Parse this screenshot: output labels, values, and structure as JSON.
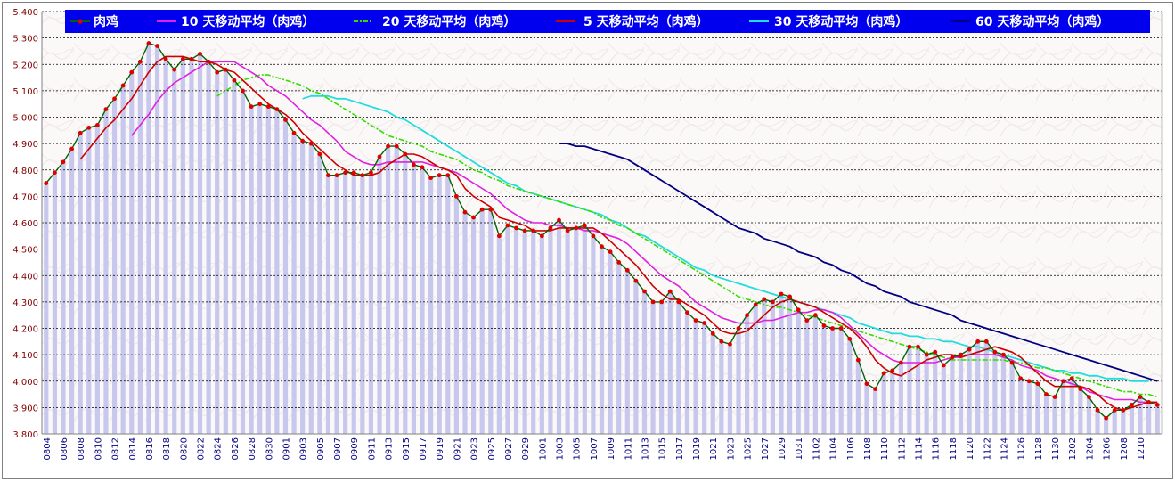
{
  "chart_data": {
    "type": "line",
    "title": "",
    "xlabel": "",
    "ylabel": "",
    "ylim": [
      3.8,
      5.4
    ],
    "yticks": [
      "3.800",
      "3.900",
      "4.000",
      "4.100",
      "4.200",
      "4.300",
      "4.400",
      "4.500",
      "4.600",
      "4.700",
      "4.800",
      "4.900",
      "5.000",
      "5.100",
      "5.200",
      "5.300",
      "5.400"
    ],
    "xticks": [
      "0804",
      "0806",
      "0808",
      "0810",
      "0812",
      "0814",
      "0816",
      "0818",
      "0820",
      "0822",
      "0824",
      "0826",
      "0828",
      "0830",
      "0901",
      "0903",
      "0905",
      "0907",
      "0909",
      "0911",
      "0913",
      "0915",
      "0917",
      "0919",
      "0921",
      "0923",
      "0925",
      "0927",
      "0929",
      "1001",
      "1003",
      "1005",
      "1007",
      "1009",
      "1011",
      "1013",
      "1015",
      "1017",
      "1019",
      "1021",
      "1023",
      "1025",
      "1027",
      "1029",
      "1031",
      "1102",
      "1104",
      "1106",
      "1108",
      "1110",
      "1112",
      "1114",
      "1116",
      "1118",
      "1120",
      "1122",
      "1124",
      "1126",
      "1128",
      "1130",
      "1202",
      "1204",
      "1206",
      "1208",
      "1210"
    ],
    "legend_position": "top",
    "colors": {
      "price": "#006400",
      "price_marker": "#e00000",
      "ma10": "#e020e0",
      "ma20": "#33dd00",
      "ma5": "#cc0000",
      "ma30": "#22dddd",
      "ma60": "#000080",
      "legend_bg": "#0000ee",
      "bars": "#c8c8ee",
      "axis_text": "#800000"
    },
    "series": [
      {
        "key": "price",
        "name": "肉鸡",
        "values": [
          4.75,
          4.79,
          4.83,
          4.88,
          4.94,
          4.96,
          4.97,
          5.03,
          5.07,
          5.12,
          5.17,
          5.21,
          5.28,
          5.27,
          5.22,
          5.18,
          5.22,
          5.22,
          5.24,
          5.21,
          5.17,
          5.18,
          5.14,
          5.1,
          5.04,
          5.05,
          5.04,
          5.03,
          4.99,
          4.94,
          4.91,
          4.9,
          4.86,
          4.78,
          4.78,
          4.79,
          4.79,
          4.78,
          4.79,
          4.85,
          4.89,
          4.89,
          4.86,
          4.82,
          4.81,
          4.77,
          4.78,
          4.78,
          4.7,
          4.64,
          4.62,
          4.65,
          4.65,
          4.55,
          4.59,
          4.58,
          4.57,
          4.57,
          4.55,
          4.58,
          4.61,
          4.57,
          4.58,
          4.59,
          4.55,
          4.51,
          4.49,
          4.45,
          4.42,
          4.38,
          4.34,
          4.3,
          4.3,
          4.34,
          4.3,
          4.26,
          4.23,
          4.22,
          4.18,
          4.15,
          4.14,
          4.2,
          4.25,
          4.29,
          4.31,
          4.3,
          4.33,
          4.32,
          4.27,
          4.23,
          4.25,
          4.21,
          4.2,
          4.2,
          4.16,
          4.08,
          3.99,
          3.97,
          4.03,
          4.04,
          4.07,
          4.13,
          4.13,
          4.1,
          4.11,
          4.06,
          4.09,
          4.1,
          4.12,
          4.15,
          4.15,
          4.11,
          4.1,
          4.07,
          4.01,
          4.0,
          3.99,
          3.95,
          3.94,
          4.0,
          4.01,
          3.97,
          3.94,
          3.89,
          3.86,
          3.89,
          3.89,
          3.91,
          3.94,
          3.92,
          3.91
        ]
      },
      {
        "key": "ma5",
        "name": "5 天移动平均（肉鸡）",
        "values": [
          null,
          null,
          null,
          null,
          4.84,
          4.88,
          4.92,
          4.96,
          4.99,
          5.03,
          5.07,
          5.12,
          5.17,
          5.21,
          5.23,
          5.23,
          5.23,
          5.22,
          5.21,
          5.21,
          5.2,
          5.18,
          5.17,
          5.14,
          5.11,
          5.08,
          5.05,
          5.03,
          5.01,
          4.98,
          4.94,
          4.91,
          4.88,
          4.85,
          4.82,
          4.8,
          4.78,
          4.78,
          4.78,
          4.79,
          4.82,
          4.84,
          4.86,
          4.86,
          4.85,
          4.83,
          4.81,
          4.8,
          4.78,
          4.73,
          4.7,
          4.68,
          4.66,
          4.62,
          4.61,
          4.6,
          4.59,
          4.57,
          4.57,
          4.57,
          4.58,
          4.58,
          4.58,
          4.58,
          4.58,
          4.56,
          4.53,
          4.5,
          4.47,
          4.44,
          4.4,
          4.36,
          4.33,
          4.31,
          4.31,
          4.29,
          4.27,
          4.25,
          4.22,
          4.19,
          4.18,
          4.18,
          4.19,
          4.22,
          4.25,
          4.28,
          4.3,
          4.31,
          4.3,
          4.29,
          4.28,
          4.26,
          4.24,
          4.22,
          4.2,
          4.17,
          4.13,
          4.08,
          4.05,
          4.03,
          4.02,
          4.04,
          4.06,
          4.08,
          4.09,
          4.1,
          4.1,
          4.09,
          4.1,
          4.11,
          4.12,
          4.13,
          4.12,
          4.11,
          4.09,
          4.06,
          4.03,
          4.0,
          3.98,
          3.98,
          3.98,
          3.98,
          3.97,
          3.95,
          3.92,
          3.9,
          3.89,
          3.9,
          3.91,
          3.92,
          3.92
        ]
      },
      {
        "key": "ma10",
        "name": "10 天移动平均（肉鸡）",
        "values": [
          null,
          null,
          null,
          null,
          null,
          null,
          null,
          null,
          null,
          null,
          4.93,
          4.97,
          5.01,
          5.06,
          5.1,
          5.13,
          5.15,
          5.17,
          5.19,
          5.21,
          5.21,
          5.21,
          5.21,
          5.19,
          5.17,
          5.15,
          5.12,
          5.1,
          5.08,
          5.05,
          5.02,
          4.99,
          4.97,
          4.94,
          4.91,
          4.87,
          4.85,
          4.83,
          4.82,
          4.82,
          4.83,
          4.83,
          4.83,
          4.83,
          4.83,
          4.82,
          4.81,
          4.8,
          4.79,
          4.77,
          4.75,
          4.73,
          4.71,
          4.68,
          4.65,
          4.63,
          4.61,
          4.6,
          4.6,
          4.59,
          4.59,
          4.58,
          4.58,
          4.57,
          4.57,
          4.56,
          4.55,
          4.54,
          4.52,
          4.49,
          4.46,
          4.43,
          4.4,
          4.38,
          4.36,
          4.33,
          4.3,
          4.28,
          4.26,
          4.24,
          4.23,
          4.22,
          4.22,
          4.22,
          4.23,
          4.23,
          4.24,
          4.25,
          4.26,
          4.26,
          4.27,
          4.27,
          4.26,
          4.24,
          4.21,
          4.18,
          4.15,
          4.12,
          4.1,
          4.08,
          4.07,
          4.07,
          4.07,
          4.07,
          4.07,
          4.08,
          4.09,
          4.09,
          4.1,
          4.1,
          4.1,
          4.1,
          4.09,
          4.08,
          4.06,
          4.05,
          4.04,
          4.02,
          4.01,
          4.0,
          3.99,
          3.98,
          3.96,
          3.95,
          3.94,
          3.93,
          3.93,
          3.93,
          3.92,
          3.92,
          3.92
        ]
      },
      {
        "key": "ma20",
        "name": "20 天移动平均（肉鸡）",
        "values": [
          null,
          null,
          null,
          null,
          null,
          null,
          null,
          null,
          null,
          null,
          null,
          null,
          null,
          null,
          null,
          null,
          null,
          null,
          null,
          null,
          5.08,
          5.1,
          5.12,
          5.14,
          5.15,
          5.16,
          5.16,
          5.15,
          5.14,
          5.13,
          5.12,
          5.1,
          5.09,
          5.07,
          5.05,
          5.03,
          5.01,
          4.99,
          4.97,
          4.95,
          4.93,
          4.92,
          4.91,
          4.9,
          4.89,
          4.87,
          4.86,
          4.85,
          4.84,
          4.82,
          4.8,
          4.79,
          4.77,
          4.76,
          4.74,
          4.73,
          4.72,
          4.71,
          4.7,
          4.69,
          4.68,
          4.67,
          4.66,
          4.65,
          4.64,
          4.62,
          4.61,
          4.59,
          4.58,
          4.56,
          4.54,
          4.52,
          4.5,
          4.48,
          4.46,
          4.44,
          4.42,
          4.4,
          4.38,
          4.36,
          4.34,
          4.32,
          4.31,
          4.3,
          4.29,
          4.28,
          4.28,
          4.27,
          4.26,
          4.25,
          4.24,
          4.23,
          4.22,
          4.21,
          4.2,
          4.19,
          4.18,
          4.17,
          4.16,
          4.15,
          4.14,
          4.13,
          4.12,
          4.11,
          4.1,
          4.09,
          4.08,
          4.08,
          4.08,
          4.08,
          4.08,
          4.08,
          4.08,
          4.07,
          4.07,
          4.06,
          4.05,
          4.05,
          4.04,
          4.03,
          4.02,
          4.01,
          4.0,
          3.99,
          3.98,
          3.97,
          3.96,
          3.96,
          3.95,
          3.95,
          3.94
        ]
      },
      {
        "key": "ma30",
        "name": "30 天移动平均（肉鸡）",
        "values": [
          null,
          null,
          null,
          null,
          null,
          null,
          null,
          null,
          null,
          null,
          null,
          null,
          null,
          null,
          null,
          null,
          null,
          null,
          null,
          null,
          null,
          null,
          null,
          null,
          null,
          null,
          null,
          null,
          null,
          null,
          5.07,
          5.08,
          5.08,
          5.08,
          5.07,
          5.07,
          5.06,
          5.05,
          5.04,
          5.03,
          5.02,
          5.0,
          4.99,
          4.97,
          4.95,
          4.93,
          4.91,
          4.89,
          4.87,
          4.85,
          4.83,
          4.81,
          4.79,
          4.77,
          4.75,
          4.74,
          4.72,
          4.71,
          4.7,
          4.69,
          4.68,
          4.67,
          4.66,
          4.65,
          4.64,
          4.63,
          4.61,
          4.6,
          4.58,
          4.56,
          4.55,
          4.53,
          4.51,
          4.49,
          4.47,
          4.45,
          4.43,
          4.42,
          4.4,
          4.39,
          4.38,
          4.37,
          4.36,
          4.35,
          4.34,
          4.33,
          4.32,
          4.31,
          4.3,
          4.29,
          4.28,
          4.27,
          4.26,
          4.25,
          4.24,
          4.22,
          4.21,
          4.2,
          4.19,
          4.18,
          4.18,
          4.17,
          4.17,
          4.16,
          4.16,
          4.15,
          4.15,
          4.14,
          4.13,
          4.13,
          4.12,
          4.11,
          4.1,
          4.09,
          4.08,
          4.07,
          4.06,
          4.05,
          4.04,
          4.04,
          4.03,
          4.03,
          4.02,
          4.02,
          4.01,
          4.01,
          4.01,
          4.0,
          4.0,
          4.0
        ]
      },
      {
        "key": "ma60",
        "name": "60 天移动平均（肉鸡）",
        "values": [
          null,
          null,
          null,
          null,
          null,
          null,
          null,
          null,
          null,
          null,
          null,
          null,
          null,
          null,
          null,
          null,
          null,
          null,
          null,
          null,
          null,
          null,
          null,
          null,
          null,
          null,
          null,
          null,
          null,
          null,
          null,
          null,
          null,
          null,
          null,
          null,
          null,
          null,
          null,
          null,
          null,
          null,
          null,
          null,
          null,
          null,
          null,
          null,
          null,
          null,
          null,
          null,
          null,
          null,
          null,
          null,
          null,
          null,
          null,
          null,
          4.9,
          4.9,
          4.89,
          4.89,
          4.88,
          4.87,
          4.86,
          4.85,
          4.84,
          4.82,
          4.8,
          4.78,
          4.76,
          4.74,
          4.72,
          4.7,
          4.68,
          4.66,
          4.64,
          4.62,
          4.6,
          4.58,
          4.57,
          4.56,
          4.54,
          4.53,
          4.52,
          4.51,
          4.49,
          4.48,
          4.47,
          4.45,
          4.44,
          4.42,
          4.41,
          4.39,
          4.37,
          4.36,
          4.34,
          4.33,
          4.32,
          4.3,
          4.29,
          4.28,
          4.27,
          4.26,
          4.25,
          4.23,
          4.22,
          4.21,
          4.2,
          4.19,
          4.18,
          4.17,
          4.16,
          4.15,
          4.14,
          4.13,
          4.12,
          4.11,
          4.1,
          4.09,
          4.08,
          4.07,
          4.06,
          4.05,
          4.04,
          4.03,
          4.02,
          4.01,
          4.0
        ]
      }
    ]
  }
}
